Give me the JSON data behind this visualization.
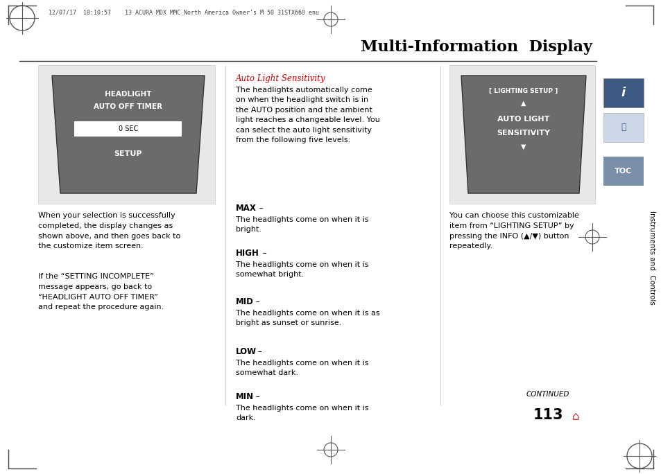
{
  "page_bg": "#ffffff",
  "title": "Multi-Information  Display",
  "title_font_size": 16,
  "title_color": "#000000",
  "timestamp_text": "12/07/17  18:10:57    13 ACURA MDX MMC North America Owner's M 50 31STX660 enu",
  "timestamp_font_size": 6.0,
  "screen_bg": "#6b6b6b",
  "screen_text_line1": "HEADLIGHT",
  "screen_text_line2": "AUTO OFF TIMER",
  "screen_text_line3": "0 SEC",
  "screen_text_line4": "SETUP",
  "right_screen_text_line1": "[ LIGHTING SETUP ]",
  "right_screen_text_line2": "▲",
  "right_screen_text_line3": "AUTO LIGHT",
  "right_screen_text_line4": "SENSITIVITY",
  "right_screen_text_line5": "▼",
  "middle_section_header": "Auto Light Sensitivity",
  "middle_section_header_color": "#cc0000",
  "middle_text": "The headlights automatically come\non when the headlight switch is in\nthe AUTO position and the ambient\nlight reaches a changeable level. You\ncan select the auto light sensitivity\nfrom the following five levels:",
  "left_para1": "When your selection is successfully\ncompleted, the display changes as\nshown above, and then goes back to\nthe customize item screen.",
  "left_para2": "If the “SETTING INCOMPLETE”\nmessage appears, go back to\n“HEADLIGHT AUTO OFF TIMER”\nand repeat the procedure again.",
  "right_para": "You can choose this customizable\nitem from “LIGHTING SETUP” by\npressing the INFO (▲/▼) button\nrepeatedly.",
  "page_num": "113",
  "continued_text": "CONTINUED",
  "toc_text": "TOC",
  "sidebar_text": "Instruments and  Controls"
}
